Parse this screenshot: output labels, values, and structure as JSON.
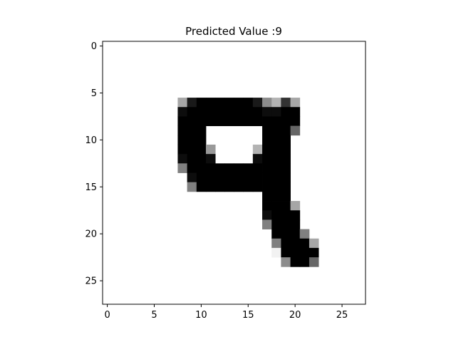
{
  "chart_data": {
    "type": "heatmap",
    "title": "Predicted Value :9",
    "colormap": "gray_r",
    "rows": 28,
    "cols": 28,
    "xlim": [
      -0.5,
      27.5
    ],
    "ylim": [
      27.5,
      -0.5
    ],
    "xticks": [
      0,
      5,
      10,
      15,
      20,
      25
    ],
    "yticks": [
      0,
      5,
      10,
      15,
      20,
      25
    ],
    "pixels": [
      [
        6,
        8,
        0.35
      ],
      [
        6,
        9,
        0.9
      ],
      [
        6,
        10,
        1
      ],
      [
        6,
        11,
        1
      ],
      [
        6,
        12,
        1
      ],
      [
        6,
        13,
        1
      ],
      [
        6,
        14,
        1
      ],
      [
        6,
        15,
        1
      ],
      [
        6,
        16,
        0.9
      ],
      [
        6,
        17,
        0.45
      ],
      [
        6,
        18,
        0.3
      ],
      [
        6,
        19,
        0.8
      ],
      [
        6,
        20,
        0.35
      ],
      [
        7,
        8,
        0.95
      ],
      [
        7,
        9,
        1
      ],
      [
        7,
        10,
        1
      ],
      [
        7,
        11,
        1
      ],
      [
        7,
        12,
        1
      ],
      [
        7,
        13,
        1
      ],
      [
        7,
        14,
        1
      ],
      [
        7,
        15,
        1
      ],
      [
        7,
        16,
        1
      ],
      [
        7,
        17,
        0.95
      ],
      [
        7,
        18,
        0.95
      ],
      [
        7,
        19,
        1
      ],
      [
        7,
        20,
        1
      ],
      [
        8,
        8,
        1
      ],
      [
        8,
        9,
        1
      ],
      [
        8,
        10,
        1
      ],
      [
        8,
        11,
        1
      ],
      [
        8,
        12,
        1
      ],
      [
        8,
        13,
        1
      ],
      [
        8,
        14,
        1
      ],
      [
        8,
        15,
        1
      ],
      [
        8,
        16,
        1
      ],
      [
        8,
        17,
        1
      ],
      [
        8,
        18,
        1
      ],
      [
        8,
        19,
        1
      ],
      [
        8,
        20,
        1
      ],
      [
        9,
        8,
        1
      ],
      [
        9,
        9,
        1
      ],
      [
        9,
        10,
        1
      ],
      [
        9,
        17,
        1
      ],
      [
        9,
        18,
        1
      ],
      [
        9,
        19,
        1
      ],
      [
        9,
        20,
        0.6
      ],
      [
        10,
        8,
        1
      ],
      [
        10,
        9,
        1
      ],
      [
        10,
        10,
        1
      ],
      [
        10,
        17,
        1
      ],
      [
        10,
        18,
        1
      ],
      [
        10,
        19,
        1
      ],
      [
        11,
        8,
        1
      ],
      [
        11,
        9,
        1
      ],
      [
        11,
        10,
        1
      ],
      [
        11,
        11,
        0.4
      ],
      [
        11,
        16,
        0.3
      ],
      [
        11,
        17,
        1
      ],
      [
        11,
        18,
        1
      ],
      [
        11,
        19,
        1
      ],
      [
        12,
        8,
        0.95
      ],
      [
        12,
        9,
        1
      ],
      [
        12,
        10,
        1
      ],
      [
        12,
        11,
        0.95
      ],
      [
        12,
        16,
        0.95
      ],
      [
        12,
        17,
        1
      ],
      [
        12,
        18,
        1
      ],
      [
        12,
        19,
        1
      ],
      [
        13,
        8,
        0.5
      ],
      [
        13,
        9,
        1
      ],
      [
        13,
        10,
        1
      ],
      [
        13,
        11,
        1
      ],
      [
        13,
        12,
        1
      ],
      [
        13,
        13,
        1
      ],
      [
        13,
        14,
        1
      ],
      [
        13,
        15,
        1
      ],
      [
        13,
        16,
        1
      ],
      [
        13,
        17,
        1
      ],
      [
        13,
        18,
        1
      ],
      [
        13,
        19,
        1
      ],
      [
        14,
        9,
        0.95
      ],
      [
        14,
        10,
        1
      ],
      [
        14,
        11,
        1
      ],
      [
        14,
        12,
        1
      ],
      [
        14,
        13,
        1
      ],
      [
        14,
        14,
        1
      ],
      [
        14,
        15,
        1
      ],
      [
        14,
        16,
        1
      ],
      [
        14,
        17,
        1
      ],
      [
        14,
        18,
        1
      ],
      [
        14,
        19,
        1
      ],
      [
        15,
        9,
        0.5
      ],
      [
        15,
        10,
        1
      ],
      [
        15,
        11,
        1
      ],
      [
        15,
        12,
        1
      ],
      [
        15,
        13,
        1
      ],
      [
        15,
        14,
        1
      ],
      [
        15,
        15,
        1
      ],
      [
        15,
        16,
        1
      ],
      [
        15,
        17,
        1
      ],
      [
        15,
        18,
        1
      ],
      [
        15,
        19,
        1
      ],
      [
        16,
        17,
        1
      ],
      [
        16,
        18,
        1
      ],
      [
        16,
        19,
        1
      ],
      [
        17,
        17,
        1
      ],
      [
        17,
        18,
        1
      ],
      [
        17,
        19,
        1
      ],
      [
        17,
        20,
        0.35
      ],
      [
        18,
        17,
        0.95
      ],
      [
        18,
        18,
        1
      ],
      [
        18,
        19,
        1
      ],
      [
        18,
        20,
        1
      ],
      [
        19,
        17,
        0.5
      ],
      [
        19,
        18,
        1
      ],
      [
        19,
        19,
        1
      ],
      [
        19,
        20,
        1
      ],
      [
        20,
        18,
        1
      ],
      [
        20,
        19,
        1
      ],
      [
        20,
        20,
        1
      ],
      [
        20,
        21,
        0.5
      ],
      [
        21,
        18,
        0.5
      ],
      [
        21,
        19,
        1
      ],
      [
        21,
        20,
        1
      ],
      [
        21,
        21,
        1
      ],
      [
        21,
        22,
        0.35
      ],
      [
        22,
        18,
        0.05
      ],
      [
        22,
        19,
        1
      ],
      [
        22,
        20,
        1
      ],
      [
        22,
        21,
        1
      ],
      [
        22,
        22,
        1
      ],
      [
        23,
        19,
        0.45
      ],
      [
        23,
        20,
        1
      ],
      [
        23,
        21,
        1
      ],
      [
        23,
        22,
        0.6
      ]
    ]
  }
}
